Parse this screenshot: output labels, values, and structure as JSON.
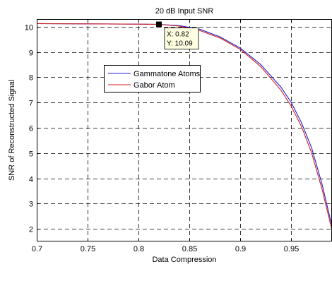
{
  "chart_data": {
    "type": "line",
    "title": "20 dB Input SNR",
    "xlabel": "Data Compression",
    "ylabel": "SNR of Reconstructed Signal",
    "xlim": [
      0.7,
      0.99
    ],
    "ylim": [
      1.5,
      10.3
    ],
    "xticks": [
      0.7,
      0.75,
      0.8,
      0.85,
      0.9,
      0.95
    ],
    "xtick_labels": [
      "0.7",
      "0.75",
      "0.8",
      "0.85",
      "0.9",
      "0.95"
    ],
    "yticks": [
      2,
      3,
      4,
      5,
      6,
      7,
      8,
      9,
      10
    ],
    "ytick_labels": [
      "2",
      "3",
      "4",
      "5",
      "6",
      "7",
      "8",
      "9",
      "10"
    ],
    "grid": true,
    "legend_position": "upper-middle-left",
    "series": [
      {
        "name": "Gammatone Atoms",
        "color": "#2020d0",
        "x": [
          0.7,
          0.75,
          0.8,
          0.82,
          0.84,
          0.86,
          0.88,
          0.9,
          0.92,
          0.94,
          0.95,
          0.96,
          0.97,
          0.98,
          0.99
        ],
        "y": [
          10.12,
          10.11,
          10.1,
          10.09,
          10.04,
          9.9,
          9.6,
          9.15,
          8.5,
          7.6,
          7.0,
          6.2,
          5.2,
          3.8,
          2.1
        ]
      },
      {
        "name": "Gabor Atom",
        "color": "#d02020",
        "x": [
          0.7,
          0.75,
          0.8,
          0.82,
          0.84,
          0.86,
          0.88,
          0.9,
          0.92,
          0.94,
          0.95,
          0.96,
          0.97,
          0.98,
          0.99
        ],
        "y": [
          10.12,
          10.11,
          10.1,
          10.09,
          10.02,
          9.85,
          9.55,
          9.1,
          8.42,
          7.48,
          6.85,
          6.05,
          5.0,
          3.6,
          1.95
        ]
      }
    ],
    "datatip": {
      "x_value": 0.82,
      "y_value": 10.09,
      "x_text": "X: 0.82",
      "y_text": "Y: 10.09"
    }
  }
}
